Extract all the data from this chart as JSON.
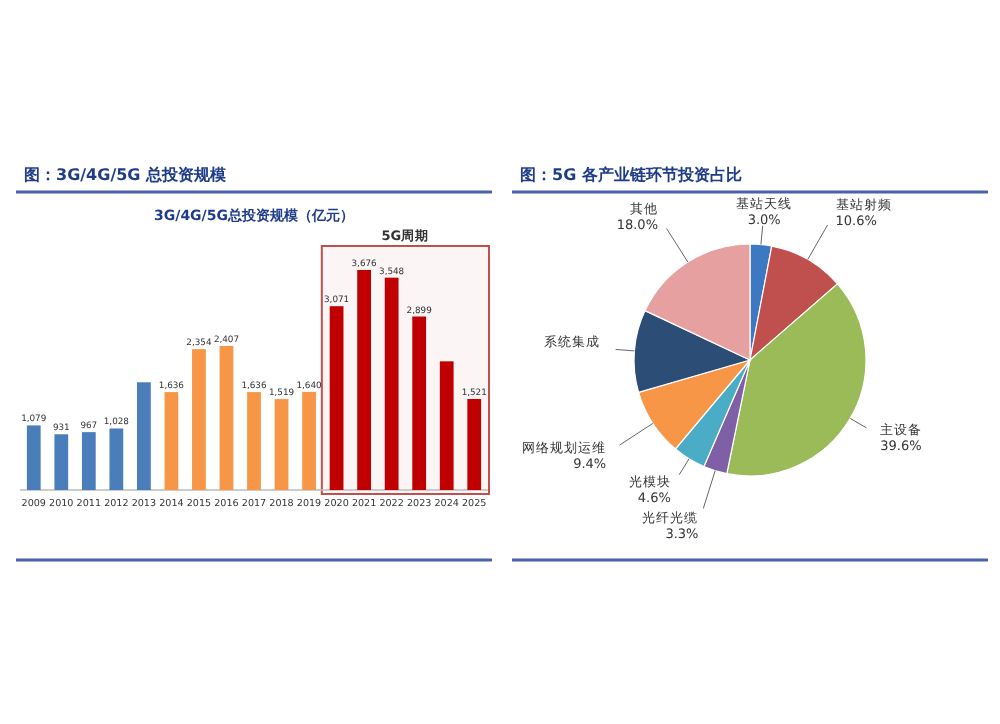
{
  "chart_data": [
    {
      "type": "bar",
      "title": "图：3G/4G/5G 总投资规模",
      "subtitle": "3G/4G/5G总投资规模（亿元）",
      "categories": [
        "2009",
        "2010",
        "2011",
        "2012",
        "2013",
        "2014",
        "2015",
        "2016",
        "2017",
        "2018",
        "2019",
        "2020",
        "2021",
        "2022",
        "2023",
        "2024",
        "2025"
      ],
      "values": [
        1079,
        931,
        967,
        1028,
        1800,
        1636,
        2354,
        2407,
        1636,
        1519,
        1640,
        3071,
        3676,
        3548,
        2899,
        2150,
        1521
      ],
      "colors": [
        "#4a7ebb",
        "#4a7ebb",
        "#4a7ebb",
        "#4a7ebb",
        "#4a7ebb",
        "#f79646",
        "#f79646",
        "#f79646",
        "#f79646",
        "#f79646",
        "#f79646",
        "#c00000",
        "#c00000",
        "#c00000",
        "#c00000",
        "#c00000",
        "#c00000"
      ],
      "value_labels": [
        "1,079",
        "931",
        "967",
        "1,028",
        null,
        "1,636",
        "2,354",
        "2,407",
        "1,636",
        "1,519",
        "1,640",
        "3,071",
        "3,676",
        "3,548",
        "2,899",
        null,
        "1,521"
      ],
      "bands": [
        {
          "axis": "x",
          "from": "2020",
          "to": "2025",
          "label": "5G周期",
          "color": "#c0504d"
        }
      ]
    },
    {
      "type": "pie",
      "title": "图：5G 各产业链环节投资占比",
      "categories": [
        "基站天线",
        "基站射频",
        "主设备",
        "光纤光缆",
        "光模块",
        "网络规划运维",
        "系统集成",
        "其他"
      ],
      "values": [
        3.0,
        10.6,
        39.6,
        3.3,
        4.6,
        9.4,
        11.5,
        18.0
      ],
      "value_labels": [
        "3.0%",
        "10.6%",
        "39.6%",
        "3.3%",
        "4.6%",
        "9.4%",
        null,
        "18.0%"
      ],
      "colors": [
        "#3d78c2",
        "#c0504d",
        "#9bbb59",
        "#7f5fa6",
        "#4bacc6",
        "#f79646",
        "#2c4d75",
        "#e6a0a0"
      ]
    }
  ]
}
